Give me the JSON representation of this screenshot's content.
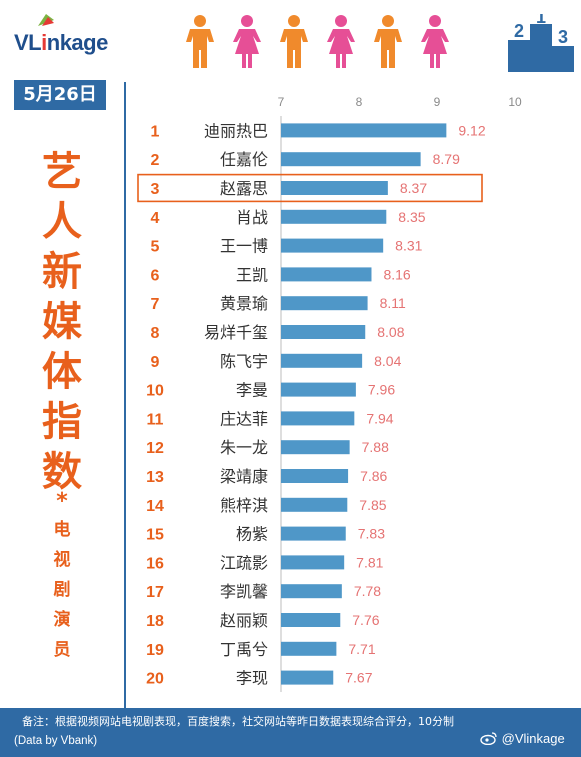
{
  "header": {
    "logo_text_1": "VL",
    "logo_text_2": "i",
    "logo_text_3": "nkage",
    "podium_numbers": [
      "2",
      "1",
      "3"
    ]
  },
  "date": "5月26日",
  "sidebar": {
    "title_chars": [
      "艺",
      "人",
      "新",
      "媒",
      "体",
      "指",
      "数"
    ],
    "star": "*",
    "sub_chars": [
      "电",
      "视",
      "剧",
      "演",
      "员"
    ]
  },
  "colors": {
    "bar": "#4f97c8",
    "rank": "#e8601c",
    "value": "#e57373",
    "title": "#e8601c",
    "header_blue": "#2f6aa4",
    "highlight_box": "#e8601c",
    "person_orange": "#f08a2c",
    "person_pink": "#e64f96"
  },
  "footer": {
    "note": "备注：根据视频网站电视剧表现，百度搜索，社交网站等昨日数据表现综合评分，10分制",
    "source": "(Data by Vbank)",
    "weibo": "@Vlinkage"
  },
  "chart_data": {
    "type": "bar",
    "orientation": "horizontal",
    "x_ticks": [
      "7",
      "8",
      "9",
      "10"
    ],
    "xlim": [
      7,
      10
    ],
    "highlighted_rank": 3,
    "ranks": [
      "1",
      "2",
      "3",
      "4",
      "5",
      "6",
      "7",
      "8",
      "9",
      "10",
      "11",
      "12",
      "13",
      "14",
      "15",
      "16",
      "17",
      "18",
      "19",
      "20"
    ],
    "categories": [
      "迪丽热巴",
      "任嘉伦",
      "赵露思",
      "肖战",
      "王一博",
      "王凯",
      "黄景瑜",
      "易烊千玺",
      "陈飞宇",
      "李曼",
      "庄达菲",
      "朱一龙",
      "梁靖康",
      "熊梓淇",
      "杨紫",
      "江疏影",
      "李凯馨",
      "赵丽颖",
      "丁禹兮",
      "李现"
    ],
    "values": [
      9.12,
      8.79,
      8.37,
      8.35,
      8.31,
      8.16,
      8.11,
      8.08,
      8.04,
      7.96,
      7.94,
      7.88,
      7.86,
      7.85,
      7.83,
      7.81,
      7.78,
      7.76,
      7.71,
      7.67
    ],
    "value_labels": [
      "9.12",
      "8.79",
      "8.37",
      "8.35",
      "8.31",
      "8.16",
      "8.11",
      "8.08",
      "8.04",
      "7.96",
      "7.94",
      "7.88",
      "7.86",
      "7.85",
      "7.83",
      "7.81",
      "7.78",
      "7.76",
      "7.71",
      "7.67"
    ]
  }
}
